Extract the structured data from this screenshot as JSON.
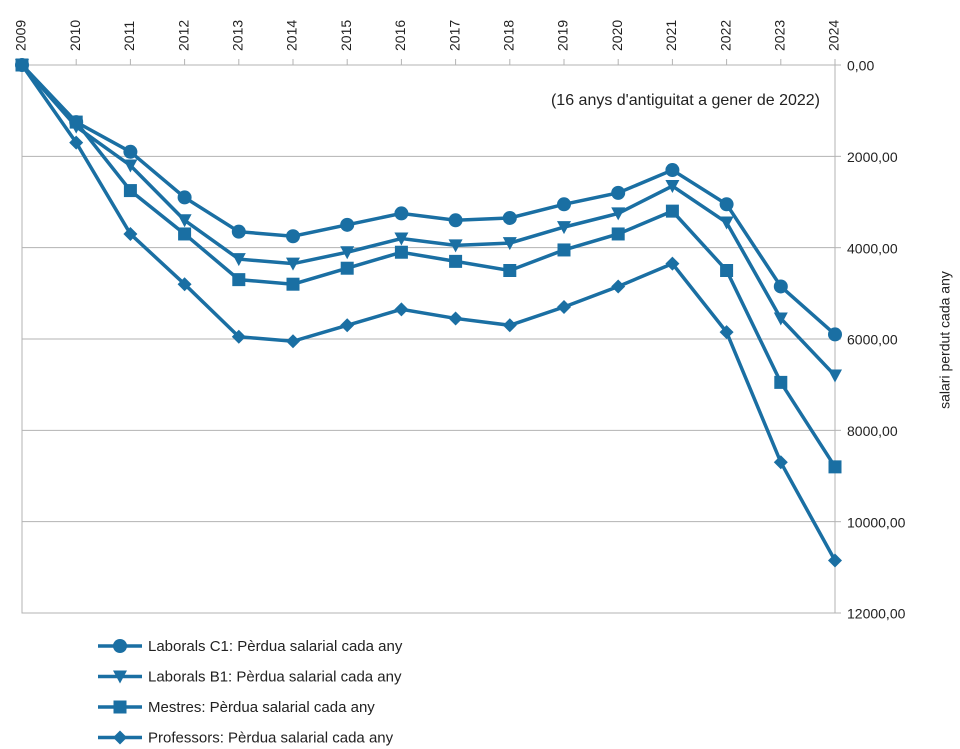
{
  "chart_data": {
    "type": "line",
    "annotation": "(16 anys d'antiguitat a gener de 2022)",
    "y_label": "salari perdut cada any",
    "categories": [
      "2009",
      "2010",
      "2011",
      "2012",
      "2013",
      "2014",
      "2015",
      "2016",
      "2017",
      "2018",
      "2019",
      "2020",
      "2021",
      "2022",
      "2023",
      "2024"
    ],
    "ylim": [
      0,
      12000
    ],
    "y_reversed": true,
    "y_axis_side": "right",
    "x_axis_side": "top",
    "grid": true,
    "legend": "bottom-left",
    "yticks": [
      {
        "value": 0,
        "label": "0,00"
      },
      {
        "value": 2000,
        "label": "2000,00"
      },
      {
        "value": 4000,
        "label": "4000,00"
      },
      {
        "value": 6000,
        "label": "6000,00"
      },
      {
        "value": 8000,
        "label": "8000,00"
      },
      {
        "value": 10000,
        "label": "10000,00"
      },
      {
        "value": 12000,
        "label": "12000,00"
      }
    ],
    "series": [
      {
        "name": "Laborals C1: Pèrdua salarial cada any",
        "color": "#1a6fa3",
        "marker": "circle",
        "values": [
          0,
          1250,
          1900,
          2900,
          3650,
          3750,
          3500,
          3250,
          3400,
          3350,
          3050,
          2800,
          2300,
          3050,
          4850,
          5900
        ]
      },
      {
        "name": "Laborals B1: Pèrdua salarial cada any",
        "color": "#1a6fa3",
        "marker": "triangle-down",
        "values": [
          0,
          1350,
          2200,
          3400,
          4250,
          4350,
          4100,
          3800,
          3950,
          3900,
          3550,
          3250,
          2650,
          3450,
          5550,
          6800
        ]
      },
      {
        "name": "Mestres: Pèrdua salarial cada any",
        "color": "#1a6fa3",
        "marker": "square",
        "values": [
          0,
          1250,
          2750,
          3700,
          4700,
          4800,
          4450,
          4100,
          4300,
          4500,
          4050,
          3700,
          3200,
          4500,
          6950,
          8800
        ]
      },
      {
        "name": "Professors: Pèrdua salarial cada any",
        "color": "#1a6fa3",
        "marker": "diamond",
        "values": [
          0,
          1700,
          3700,
          4800,
          5950,
          6050,
          5700,
          5350,
          5550,
          5700,
          5300,
          4850,
          4350,
          5850,
          8700,
          10850
        ]
      }
    ]
  }
}
